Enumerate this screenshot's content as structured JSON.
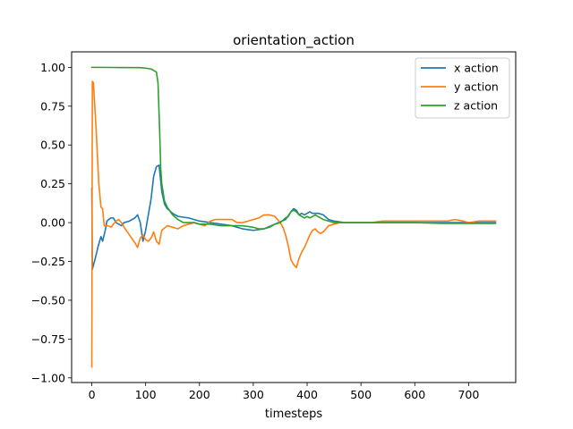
{
  "chart_data": {
    "type": "line",
    "title": "orientation_action",
    "xlabel": "timesteps",
    "ylabel": "",
    "xlim": [
      -37.5,
      787.5
    ],
    "ylim": [
      -1.03,
      1.1
    ],
    "xticks": [
      0,
      100,
      200,
      300,
      400,
      500,
      600,
      700
    ],
    "yticks": [
      -1.0,
      -0.75,
      -0.5,
      -0.25,
      0.0,
      0.25,
      0.5,
      0.75,
      1.0
    ],
    "ytick_labels": [
      "−1.00",
      "−0.75",
      "−0.50",
      "−0.25",
      "0.00",
      "0.25",
      "0.50",
      "0.75",
      "1.00"
    ],
    "xtick_labels": [
      "0",
      "100",
      "200",
      "300",
      "400",
      "500",
      "600",
      "700"
    ],
    "legend_position": "top-right",
    "grid": false,
    "series": [
      {
        "name": "x action",
        "color": "#1f77b4",
        "points": [
          [
            0,
            0.22
          ],
          [
            1,
            -0.3
          ],
          [
            5,
            -0.25
          ],
          [
            12,
            -0.15
          ],
          [
            17,
            -0.09
          ],
          [
            20,
            -0.12
          ],
          [
            25,
            -0.05
          ],
          [
            28,
            0.01
          ],
          [
            35,
            0.03
          ],
          [
            40,
            0.03
          ],
          [
            45,
            0.0
          ],
          [
            55,
            -0.02
          ],
          [
            60,
            0.0
          ],
          [
            70,
            0.01
          ],
          [
            80,
            0.03
          ],
          [
            85,
            0.05
          ],
          [
            90,
            0.0
          ],
          [
            95,
            -0.12
          ],
          [
            100,
            -0.05
          ],
          [
            105,
            0.05
          ],
          [
            110,
            0.15
          ],
          [
            115,
            0.3
          ],
          [
            120,
            0.36
          ],
          [
            125,
            0.37
          ],
          [
            130,
            0.2
          ],
          [
            135,
            0.12
          ],
          [
            140,
            0.09
          ],
          [
            150,
            0.06
          ],
          [
            160,
            0.04
          ],
          [
            180,
            0.03
          ],
          [
            200,
            0.01
          ],
          [
            220,
            0.0
          ],
          [
            240,
            -0.01
          ],
          [
            260,
            -0.02
          ],
          [
            280,
            -0.04
          ],
          [
            300,
            -0.05
          ],
          [
            320,
            -0.04
          ],
          [
            340,
            -0.01
          ],
          [
            360,
            0.02
          ],
          [
            370,
            0.07
          ],
          [
            375,
            0.09
          ],
          [
            380,
            0.08
          ],
          [
            385,
            0.05
          ],
          [
            390,
            0.06
          ],
          [
            395,
            0.05
          ],
          [
            400,
            0.06
          ],
          [
            405,
            0.07
          ],
          [
            410,
            0.06
          ],
          [
            420,
            0.06
          ],
          [
            430,
            0.05
          ],
          [
            440,
            0.02
          ],
          [
            450,
            0.01
          ],
          [
            470,
            0.0
          ],
          [
            500,
            0.0
          ],
          [
            550,
            0.0
          ],
          [
            600,
            0.0
          ],
          [
            650,
            0.0
          ],
          [
            700,
            0.0
          ],
          [
            750,
            0.0
          ]
        ]
      },
      {
        "name": "y action",
        "color": "#ff7f0e",
        "points": [
          [
            0,
            -0.93
          ],
          [
            1,
            0.91
          ],
          [
            3,
            0.9
          ],
          [
            8,
            0.6
          ],
          [
            13,
            0.25
          ],
          [
            17,
            0.1
          ],
          [
            20,
            0.09
          ],
          [
            23,
            -0.02
          ],
          [
            30,
            -0.02
          ],
          [
            36,
            -0.03
          ],
          [
            40,
            -0.01
          ],
          [
            45,
            0.01
          ],
          [
            50,
            0.02
          ],
          [
            55,
            0.0
          ],
          [
            60,
            -0.03
          ],
          [
            70,
            -0.08
          ],
          [
            80,
            -0.13
          ],
          [
            85,
            -0.16
          ],
          [
            90,
            -0.1
          ],
          [
            95,
            -0.08
          ],
          [
            100,
            -0.11
          ],
          [
            105,
            -0.12
          ],
          [
            110,
            -0.1
          ],
          [
            115,
            -0.06
          ],
          [
            120,
            -0.12
          ],
          [
            125,
            -0.14
          ],
          [
            130,
            -0.05
          ],
          [
            140,
            -0.02
          ],
          [
            150,
            -0.03
          ],
          [
            160,
            -0.04
          ],
          [
            170,
            -0.02
          ],
          [
            180,
            -0.01
          ],
          [
            190,
            0.0
          ],
          [
            200,
            -0.01
          ],
          [
            210,
            -0.02
          ],
          [
            220,
            0.01
          ],
          [
            230,
            0.02
          ],
          [
            240,
            0.02
          ],
          [
            250,
            0.02
          ],
          [
            260,
            0.02
          ],
          [
            270,
            0.0
          ],
          [
            280,
            0.0
          ],
          [
            290,
            0.01
          ],
          [
            300,
            0.02
          ],
          [
            310,
            0.03
          ],
          [
            320,
            0.05
          ],
          [
            330,
            0.05
          ],
          [
            340,
            0.04
          ],
          [
            350,
            0.0
          ],
          [
            355,
            -0.03
          ],
          [
            360,
            -0.08
          ],
          [
            365,
            -0.15
          ],
          [
            370,
            -0.24
          ],
          [
            375,
            -0.27
          ],
          [
            380,
            -0.29
          ],
          [
            385,
            -0.23
          ],
          [
            390,
            -0.19
          ],
          [
            395,
            -0.16
          ],
          [
            400,
            -0.12
          ],
          [
            405,
            -0.08
          ],
          [
            410,
            -0.05
          ],
          [
            415,
            -0.04
          ],
          [
            420,
            -0.06
          ],
          [
            425,
            -0.07
          ],
          [
            430,
            -0.06
          ],
          [
            440,
            -0.02
          ],
          [
            450,
            -0.01
          ],
          [
            460,
            0.0
          ],
          [
            480,
            0.0
          ],
          [
            500,
            0.0
          ],
          [
            520,
            0.0
          ],
          [
            540,
            0.01
          ],
          [
            560,
            0.01
          ],
          [
            580,
            0.01
          ],
          [
            600,
            0.01
          ],
          [
            620,
            0.01
          ],
          [
            640,
            0.01
          ],
          [
            660,
            0.01
          ],
          [
            675,
            0.02
          ],
          [
            690,
            0.01
          ],
          [
            700,
            0.0
          ],
          [
            720,
            0.01
          ],
          [
            750,
            0.01
          ]
        ]
      },
      {
        "name": "z action",
        "color": "#2ca02c",
        "points": [
          [
            0,
            1.0
          ],
          [
            10,
            1.0
          ],
          [
            50,
            0.999
          ],
          [
            90,
            0.998
          ],
          [
            100,
            0.995
          ],
          [
            110,
            0.99
          ],
          [
            115,
            0.98
          ],
          [
            120,
            0.97
          ],
          [
            123,
            0.9
          ],
          [
            126,
            0.6
          ],
          [
            128,
            0.35
          ],
          [
            130,
            0.25
          ],
          [
            135,
            0.14
          ],
          [
            140,
            0.1
          ],
          [
            150,
            0.05
          ],
          [
            160,
            0.02
          ],
          [
            170,
            0.0
          ],
          [
            180,
            0.0
          ],
          [
            190,
            0.0
          ],
          [
            200,
            -0.01
          ],
          [
            220,
            -0.01
          ],
          [
            240,
            -0.02
          ],
          [
            260,
            -0.02
          ],
          [
            280,
            -0.02
          ],
          [
            300,
            -0.03
          ],
          [
            310,
            -0.04
          ],
          [
            320,
            -0.04
          ],
          [
            330,
            -0.03
          ],
          [
            340,
            -0.01
          ],
          [
            350,
            0.0
          ],
          [
            360,
            0.03
          ],
          [
            365,
            0.04
          ],
          [
            370,
            0.07
          ],
          [
            375,
            0.08
          ],
          [
            380,
            0.07
          ],
          [
            385,
            0.05
          ],
          [
            390,
            0.04
          ],
          [
            395,
            0.03
          ],
          [
            400,
            0.04
          ],
          [
            405,
            0.03
          ],
          [
            410,
            0.04
          ],
          [
            415,
            0.05
          ],
          [
            420,
            0.04
          ],
          [
            430,
            0.02
          ],
          [
            440,
            0.01
          ],
          [
            450,
            0.0
          ],
          [
            470,
            0.0
          ],
          [
            500,
            0.0
          ],
          [
            550,
            0.0
          ],
          [
            600,
            0.0
          ],
          [
            650,
            -0.005
          ],
          [
            700,
            -0.005
          ],
          [
            750,
            -0.005
          ]
        ]
      }
    ]
  }
}
